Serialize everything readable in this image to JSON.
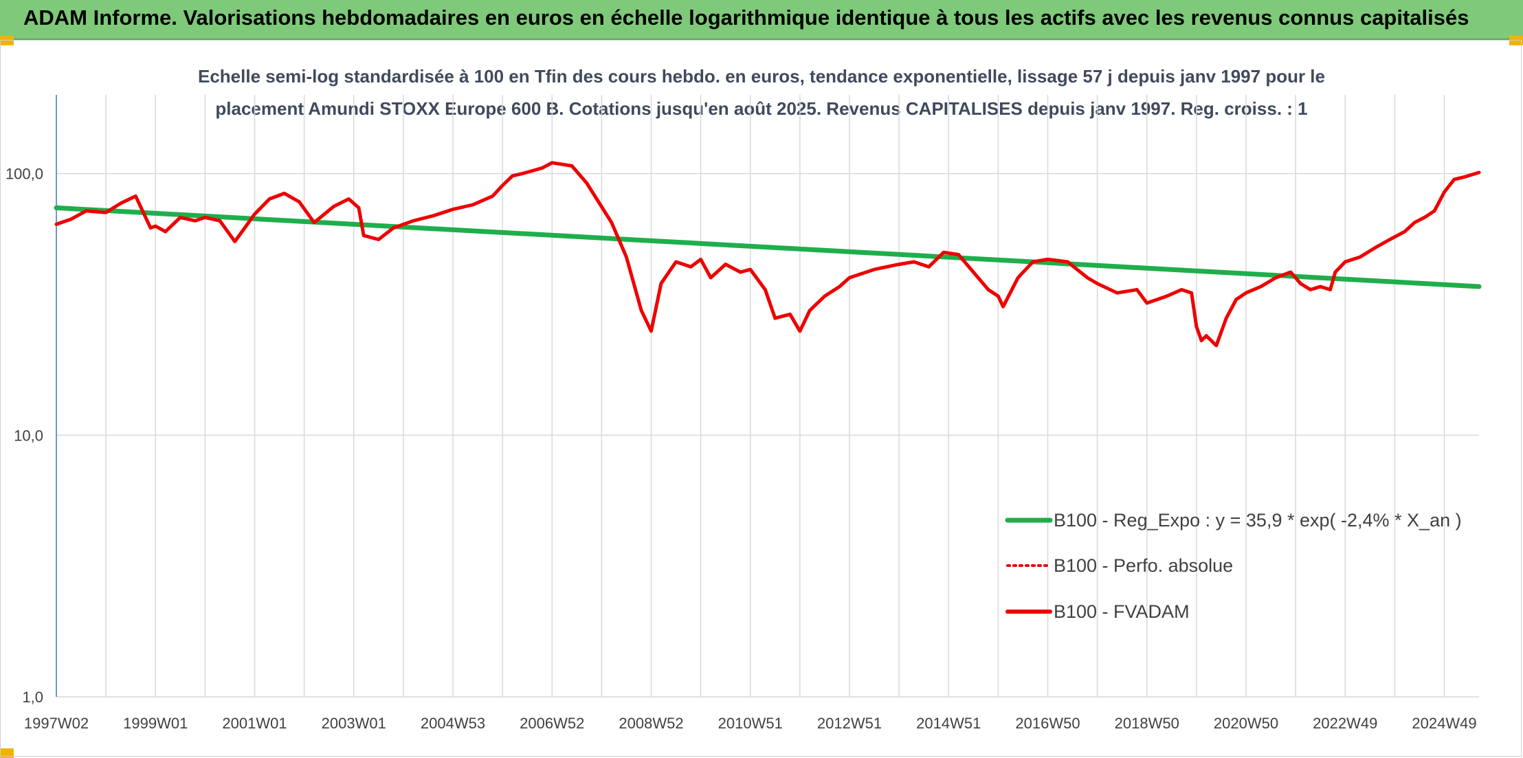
{
  "banner": {
    "title": "ADAM Informe. Valorisations hebdomadaires en euros en échelle logarithmique identique à tous les actifs avec les revenus connus capitalisés"
  },
  "colors": {
    "banner_bg": "#7fc97a",
    "regression": "#1fae4b",
    "fvadam": "#ee0000",
    "perfo": "#ee0000",
    "axis_text": "#404040",
    "grid": "#d9d9d9",
    "y_axis_line": "#4472c4"
  },
  "chart_data": {
    "type": "line",
    "title_line1": "Echelle semi-log standardisée à 100 en Tfin des cours hebdo. en euros, tendance exponentielle, lissage 57 j depuis janv 1997 pour le",
    "title_line2": "placement Amundi STOXX Europe 600 B. Cotations jusqu'en août 2025. Revenus CAPITALISES depuis janv 1997. Reg. croiss. : 1",
    "y_scale": "log",
    "ylim": [
      1,
      200
    ],
    "y_ticks": [
      {
        "value": 100,
        "label": "100,0"
      },
      {
        "value": 10,
        "label": "10,0"
      },
      {
        "value": 1,
        "label": "1,0"
      }
    ],
    "xlim": [
      1997.0,
      2025.7
    ],
    "x_ticks": [
      "1997W02",
      "1999W01",
      "2001W01",
      "2003W01",
      "2004W53",
      "2006W52",
      "2008W52",
      "2010W51",
      "2012W51",
      "2014W51",
      "2016W50",
      "2018W50",
      "2020W50",
      "2022W49",
      "2024W49"
    ],
    "x_tick_years": [
      1997.0,
      1999.0,
      2001.0,
      2003.0,
      2005.0,
      2007.0,
      2009.0,
      2011.0,
      2013.0,
      2015.0,
      2017.0,
      2019.0,
      2021.0,
      2023.0,
      2025.0
    ],
    "legend_position": "right",
    "series": [
      {
        "name": "B100 - Reg_Expo : y = 35,9 * exp( -2,4% *  X_an )",
        "style": "solid-thick",
        "x": [
          1997.0,
          2025.7
        ],
        "values": [
          74,
          37
        ]
      },
      {
        "name": "B100 - Perfo. absolue",
        "style": "dotted",
        "x": [],
        "values": []
      },
      {
        "name": "B100 - FVADAM",
        "style": "solid",
        "x": [
          1997.0,
          1997.3,
          1997.6,
          1998.0,
          1998.3,
          1998.6,
          1998.9,
          1999.0,
          1999.2,
          1999.5,
          1999.8,
          2000.0,
          2000.3,
          2000.6,
          2000.8,
          2001.0,
          2001.3,
          2001.6,
          2001.9,
          2002.2,
          2002.6,
          2002.9,
          2003.1,
          2003.2,
          2003.5,
          2003.8,
          2004.2,
          2004.6,
          2005.0,
          2005.4,
          2005.8,
          2006.0,
          2006.2,
          2006.4,
          2006.8,
          2007.0,
          2007.4,
          2007.7,
          2007.9,
          2008.2,
          2008.5,
          2008.8,
          2009.0,
          2009.2,
          2009.5,
          2009.8,
          2010.0,
          2010.2,
          2010.5,
          2010.8,
          2011.0,
          2011.3,
          2011.5,
          2011.8,
          2012.0,
          2012.2,
          2012.5,
          2012.8,
          2013.0,
          2013.5,
          2014.0,
          2014.3,
          2014.6,
          2014.9,
          2015.2,
          2015.5,
          2015.8,
          2016.0,
          2016.1,
          2016.4,
          2016.7,
          2017.0,
          2017.4,
          2017.8,
          2018.0,
          2018.4,
          2018.8,
          2019.0,
          2019.4,
          2019.7,
          2019.9,
          2020.0,
          2020.1,
          2020.2,
          2020.4,
          2020.6,
          2020.8,
          2021.0,
          2021.3,
          2021.6,
          2021.9,
          2022.1,
          2022.3,
          2022.5,
          2022.7,
          2022.8,
          2023.0,
          2023.3,
          2023.6,
          2023.9,
          2024.2,
          2024.4,
          2024.6,
          2024.8,
          2025.0,
          2025.2,
          2025.4,
          2025.7
        ],
        "values": [
          64,
          67,
          72,
          71,
          77,
          82,
          62,
          63,
          60,
          68,
          66,
          68,
          66,
          55,
          62,
          70,
          80,
          84,
          78,
          65,
          75,
          80,
          74,
          58,
          56,
          62,
          66,
          69,
          73,
          76,
          82,
          90,
          98,
          100,
          105,
          110,
          107,
          92,
          80,
          65,
          48,
          30,
          25,
          38,
          46,
          44,
          47,
          40,
          45,
          42,
          43,
          36,
          28,
          29,
          25,
          30,
          34,
          37,
          40,
          43,
          45,
          46,
          44,
          50,
          49,
          42,
          36,
          34,
          31,
          40,
          46,
          47,
          46,
          40,
          38,
          35,
          36,
          32,
          34,
          36,
          35,
          26,
          23,
          24,
          22,
          28,
          33,
          35,
          37,
          40,
          42,
          38,
          36,
          37,
          36,
          42,
          46,
          48,
          52,
          56,
          60,
          65,
          68,
          72,
          85,
          95,
          97,
          101
        ]
      }
    ]
  }
}
